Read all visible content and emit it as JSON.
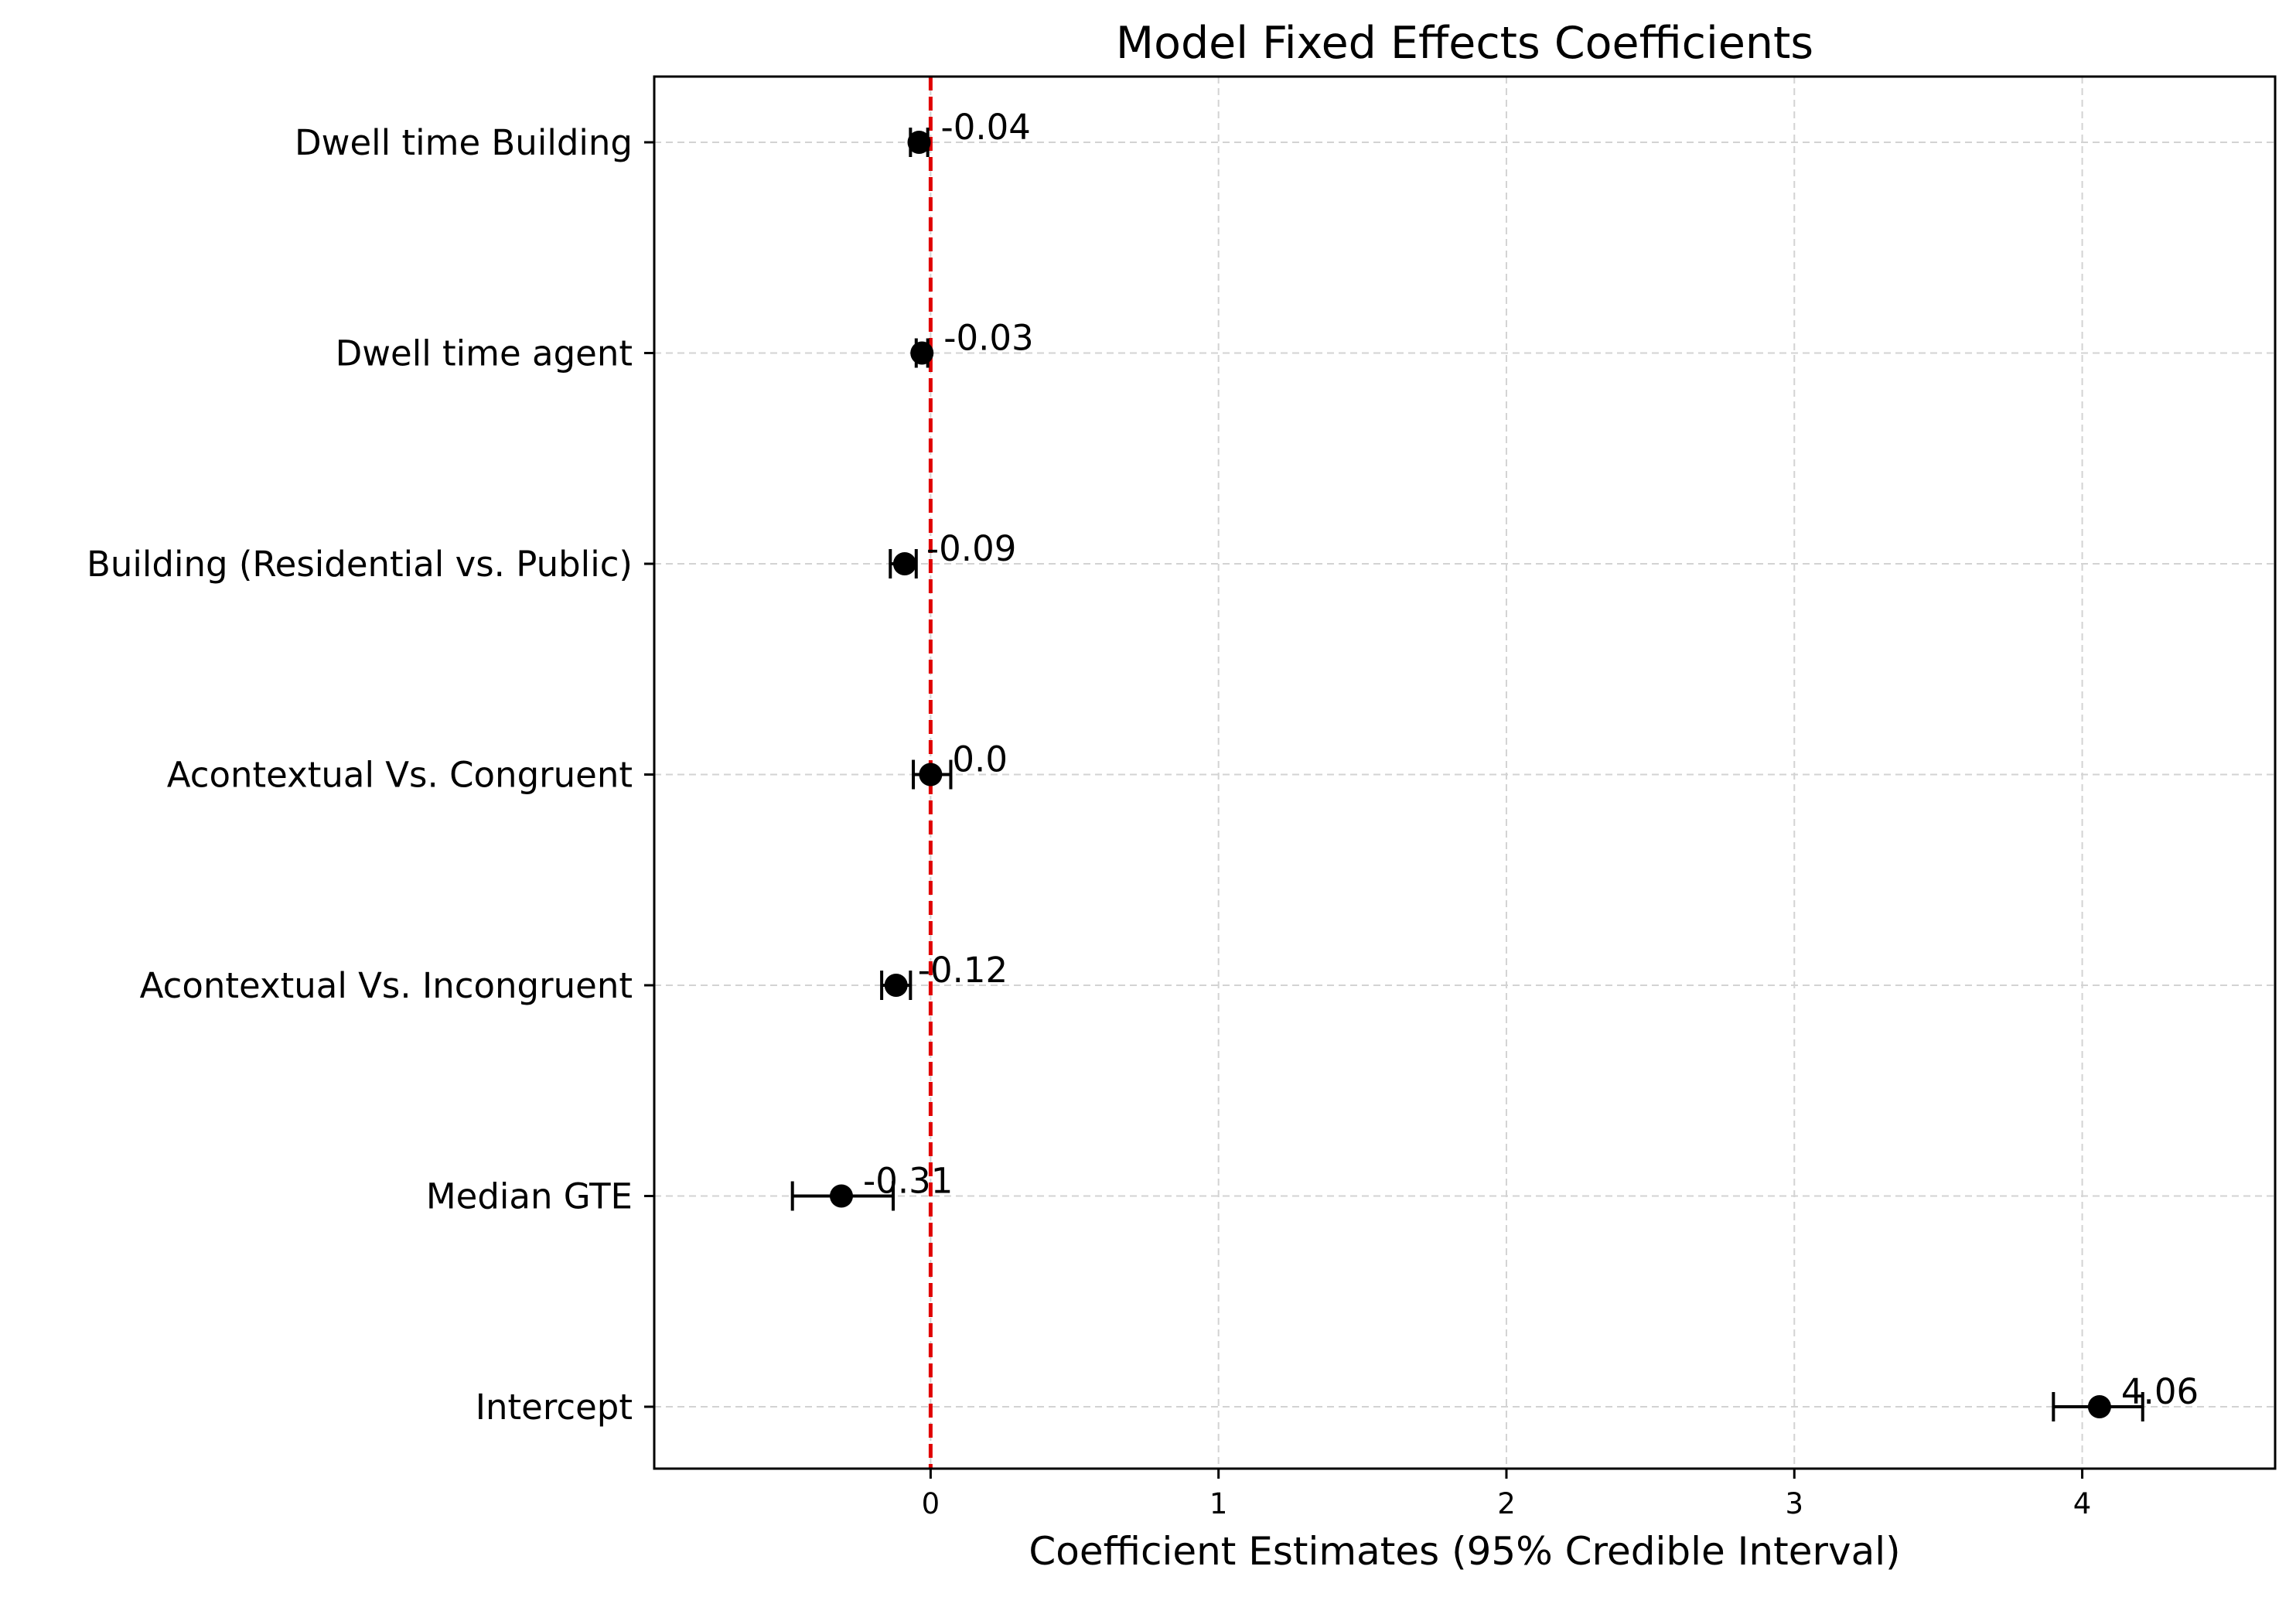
{
  "chart_data": {
    "type": "forest",
    "title": "Model Fixed Effects Coefficients",
    "xlabel": "Coefficient Estimates (95% Credible Interval)",
    "ylabel": "",
    "xlim": [
      -0.96,
      4.67
    ],
    "xticks": [
      0,
      1,
      2,
      3,
      4
    ],
    "xtick_labels": [
      "0",
      "1",
      "2",
      "3",
      "4"
    ],
    "reference_line": {
      "x": 0,
      "color": "#e00000",
      "style": "dashed"
    },
    "grid": true,
    "marker_color": "#000000",
    "categories": [
      "Dwell time Building",
      "Dwell time agent",
      "Building (Residential vs. Public)",
      "Acontextual Vs. Congruent",
      "Acontextual Vs. Incongruent",
      "Median GTE",
      "Intercept"
    ],
    "series": [
      {
        "estimates": [
          -0.04,
          -0.03,
          -0.09,
          0.0,
          -0.12,
          -0.31,
          4.06
        ],
        "lower": [
          -0.07,
          -0.05,
          -0.14,
          -0.06,
          -0.17,
          -0.48,
          3.9
        ],
        "upper": [
          -0.01,
          -0.01,
          -0.05,
          0.07,
          -0.07,
          -0.13,
          4.21
        ],
        "value_labels": [
          "-0.04",
          "-0.03",
          "-0.09",
          "0.0",
          "-0.12",
          "-0.31",
          "4.06"
        ]
      }
    ]
  }
}
